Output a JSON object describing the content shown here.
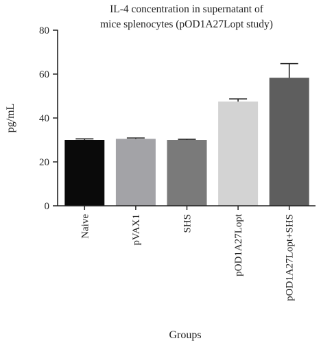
{
  "chart_data": {
    "type": "bar",
    "title_lines": [
      "IL-4 concentration in supernatant of",
      "mice splenocytes (pOD1A27Lopt study)"
    ],
    "xlabel": "Groups",
    "ylabel": "pg/mL",
    "ylim": [
      0,
      80
    ],
    "yticks": [
      0,
      20,
      40,
      60,
      80
    ],
    "ytick_labels": [
      "0",
      "20",
      "40",
      "60",
      "80"
    ],
    "grid": false,
    "categories": [
      "Naive",
      "pVAX1",
      "SHS",
      "pOD1A27Lopt",
      "pOD1A27Lopt+SHS"
    ],
    "values": [
      30.0,
      30.5,
      30.0,
      47.5,
      58.3
    ],
    "error_upper": [
      0.5,
      0.4,
      0.3,
      1.2,
      6.5
    ],
    "bar_colors": [
      "#0a0a0a",
      "#a3a3a7",
      "#7a7a7a",
      "#d3d3d3",
      "#5e5e5e"
    ]
  }
}
